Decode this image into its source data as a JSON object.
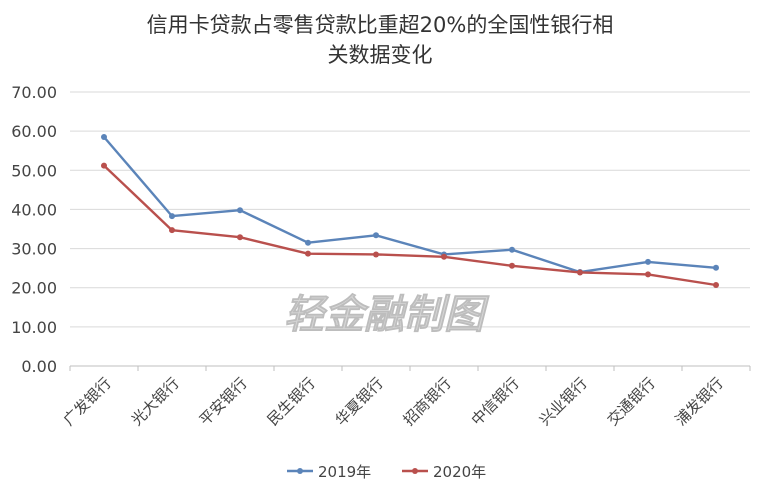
{
  "chart_data": {
    "type": "line",
    "title": "信用卡贷款占零售贷款比重超20%的全国性银行相关数据变化",
    "title_lines": [
      "信用卡贷款占零售贷款比重超20%的全国性银行相",
      "关数据变化"
    ],
    "categories": [
      "广发银行",
      "光大银行",
      "平安银行",
      "民生银行",
      "华夏银行",
      "招商银行",
      "中信银行",
      "兴业银行",
      "交通银行",
      "浦发银行"
    ],
    "series": [
      {
        "name": "2019年",
        "color": "#5b84b9",
        "values": [
          58.5,
          38.3,
          39.8,
          31.5,
          33.4,
          28.5,
          29.7,
          24.0,
          26.6,
          25.1
        ]
      },
      {
        "name": "2020年",
        "color": "#b9504d",
        "values": [
          51.2,
          34.7,
          32.9,
          28.7,
          28.5,
          27.9,
          25.6,
          23.9,
          23.4,
          20.7
        ]
      }
    ],
    "ylim": [
      0,
      70
    ],
    "yticks": [
      "0.00",
      "10.00",
      "20.00",
      "30.00",
      "40.00",
      "50.00",
      "60.00",
      "70.00"
    ],
    "xlabel": "",
    "ylabel": "",
    "grid": true,
    "legend_position": "bottom"
  },
  "watermark": "轻金融制图",
  "colors": {
    "grid": "#d9d9d9",
    "axis": "#bfbfbf",
    "text": "#444444",
    "title": "#333333"
  }
}
